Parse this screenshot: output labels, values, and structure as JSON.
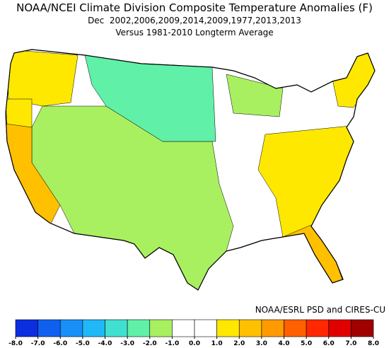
{
  "chart_data": {
    "type": "choropleth",
    "title": "NOAA/NCEI Climate Division Composite Temperature Anomalies (F)",
    "subtitle": "Dec  2002,2006,2009,2014,2009,1977,2013,2013",
    "subtitle2": "Versus 1981-2010 Longterm Average",
    "credit": "NOAA/ESRL PSD and CIRES-CU",
    "values": [
      -1.5,
      -2.5,
      -1.2,
      1.2,
      1.2,
      2.2,
      1.3,
      2.3,
      1.2
    ],
    "colorbar": {
      "ticks": [
        {
          "value": -8,
          "label": "-8.0"
        },
        {
          "value": -7,
          "label": "-7.0"
        },
        {
          "value": -6,
          "label": "-6.0"
        },
        {
          "value": -5,
          "label": "-5.0"
        },
        {
          "value": -4,
          "label": "-4.0"
        },
        {
          "value": -3,
          "label": "-3.0"
        },
        {
          "value": -2,
          "label": "-2.0"
        },
        {
          "value": -1,
          "label": "-1.0"
        },
        {
          "value": 0,
          "label": "0.0"
        },
        {
          "value": 1,
          "label": "1.0"
        },
        {
          "value": 2,
          "label": "2.0"
        },
        {
          "value": 3,
          "label": "3.0"
        },
        {
          "value": 4,
          "label": "4.0"
        },
        {
          "value": 5,
          "label": "5.0"
        },
        {
          "value": 6,
          "label": "6.0"
        },
        {
          "value": 7,
          "label": "7.0"
        },
        {
          "value": 8,
          "label": "8.0"
        }
      ],
      "colors": [
        "#0a2ee0",
        "#1060f0",
        "#1890f8",
        "#20b8f8",
        "#40e0d0",
        "#60f0a8",
        "#a8f060",
        "#ffffff",
        "#ffffff",
        "#ffe800",
        "#ffc000",
        "#ff9a00",
        "#ff6000",
        "#ff2800",
        "#e00000",
        "#a00000"
      ]
    }
  }
}
